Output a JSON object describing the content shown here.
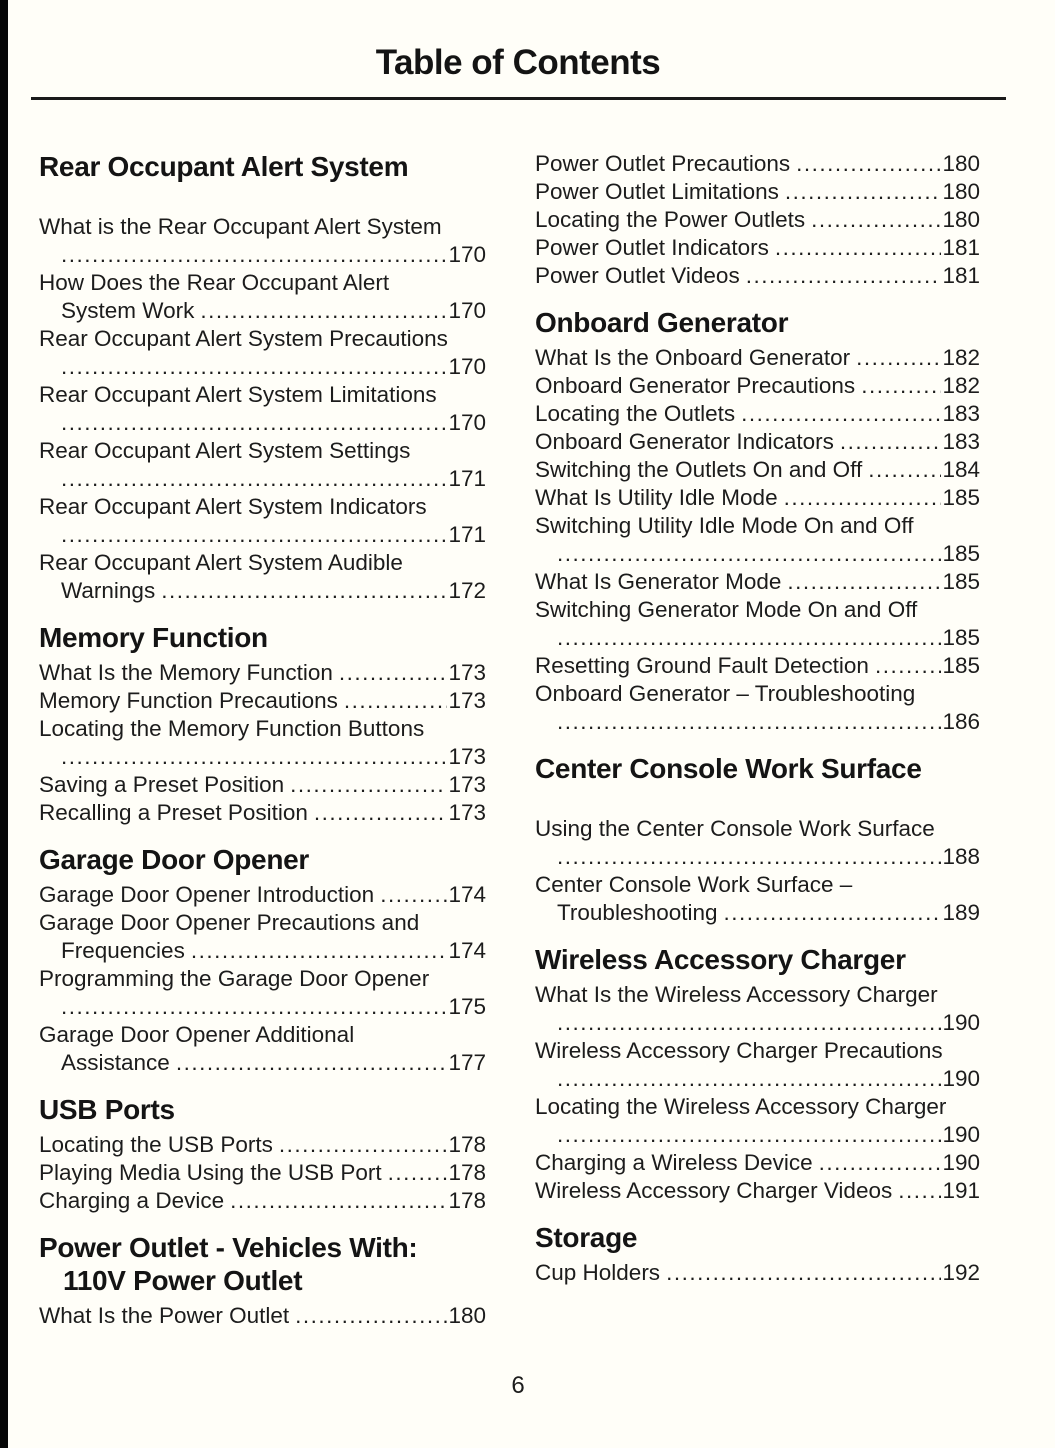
{
  "page": {
    "title": "Table of Contents",
    "number": "6"
  },
  "colors": {
    "background": "#fffef8",
    "text": "#1c1c1c",
    "heading_text": "#141414",
    "edge_bar": "#070707",
    "rule": "#1a1a1a"
  },
  "columns": [
    {
      "sections": [
        {
          "heading_lines": [
            "Rear Occupant Alert System"
          ],
          "space_after_heading": true,
          "entries": [
            {
              "t": "What is the Rear Occupant Alert System",
              "wrap": true,
              "t2": "",
              "p": "170"
            },
            {
              "t": "How Does the Rear Occupant Alert",
              "wrap": true,
              "t2": "System Work",
              "p": "170"
            },
            {
              "t": "Rear Occupant Alert System Precautions",
              "wrap": true,
              "t2": "",
              "p": "170"
            },
            {
              "t": "Rear Occupant Alert System Limitations",
              "wrap": true,
              "t2": "",
              "p": "170"
            },
            {
              "t": "Rear Occupant Alert System Settings",
              "wrap": true,
              "t2": "",
              "p": "171"
            },
            {
              "t": "Rear Occupant Alert System Indicators",
              "wrap": true,
              "t2": "",
              "p": "171"
            },
            {
              "t": "Rear Occupant Alert System Audible",
              "wrap": true,
              "t2": "Warnings",
              "p": "172"
            }
          ]
        },
        {
          "heading_lines": [
            "Memory Function"
          ],
          "entries": [
            {
              "t": "What Is the Memory Function",
              "p": "173"
            },
            {
              "t": "Memory Function Precautions",
              "p": "173"
            },
            {
              "t": "Locating the Memory Function Buttons",
              "wrap": true,
              "t2": "",
              "p": "173"
            },
            {
              "t": "Saving a Preset Position",
              "p": "173"
            },
            {
              "t": "Recalling a Preset Position",
              "p": "173"
            }
          ]
        },
        {
          "heading_lines": [
            "Garage Door Opener"
          ],
          "entries": [
            {
              "t": "Garage Door Opener Introduction",
              "p": "174"
            },
            {
              "t": "Garage Door Opener Precautions and",
              "wrap": true,
              "t2": "Frequencies",
              "p": "174"
            },
            {
              "t": "Programming the Garage Door Opener",
              "wrap": true,
              "t2": "",
              "p": "175"
            },
            {
              "t": "Garage Door Opener Additional",
              "wrap": true,
              "t2": "Assistance",
              "p": "177"
            }
          ]
        },
        {
          "heading_lines": [
            "USB Ports"
          ],
          "entries": [
            {
              "t": "Locating the USB Ports",
              "p": "178"
            },
            {
              "t": "Playing Media Using the USB Port",
              "p": "178"
            },
            {
              "t": "Charging a Device",
              "p": "178"
            }
          ]
        },
        {
          "heading_lines": [
            "Power Outlet - Vehicles With:",
            "110V Power Outlet"
          ],
          "entries": [
            {
              "t": "What Is the Power Outlet",
              "p": "180"
            }
          ]
        }
      ]
    },
    {
      "sections": [
        {
          "heading_lines": [],
          "entries": [
            {
              "t": "Power Outlet Precautions",
              "p": "180"
            },
            {
              "t": "Power Outlet Limitations",
              "p": "180"
            },
            {
              "t": "Locating the Power Outlets",
              "p": "180"
            },
            {
              "t": "Power Outlet Indicators",
              "p": "181"
            },
            {
              "t": "Power Outlet Videos",
              "p": "181"
            }
          ]
        },
        {
          "heading_lines": [
            "Onboard Generator"
          ],
          "entries": [
            {
              "t": "What Is the Onboard Generator",
              "p": "182"
            },
            {
              "t": "Onboard Generator Precautions",
              "p": "182"
            },
            {
              "t": "Locating the Outlets",
              "p": "183"
            },
            {
              "t": "Onboard Generator Indicators",
              "p": "183"
            },
            {
              "t": "Switching the Outlets On and Off",
              "p": "184"
            },
            {
              "t": "What Is Utility Idle Mode",
              "p": "185"
            },
            {
              "t": "Switching Utility Idle Mode On and Off",
              "wrap": true,
              "t2": "",
              "p": "185"
            },
            {
              "t": "What Is Generator Mode",
              "p": "185"
            },
            {
              "t": "Switching Generator Mode On and Off",
              "wrap": true,
              "t2": "",
              "p": "185"
            },
            {
              "t": "Resetting Ground Fault Detection",
              "p": "185"
            },
            {
              "t": "Onboard Generator – Troubleshooting",
              "wrap": true,
              "t2": "",
              "p": "186"
            }
          ]
        },
        {
          "heading_lines": [
            "Center Console Work Surface"
          ],
          "space_after_heading": true,
          "entries": [
            {
              "t": "Using the Center Console Work Surface",
              "wrap": true,
              "t2": "",
              "p": "188"
            },
            {
              "t": "Center Console Work Surface –",
              "wrap": true,
              "t2": "Troubleshooting",
              "p": "189"
            }
          ]
        },
        {
          "heading_lines": [
            "Wireless Accessory Charger"
          ],
          "entries": [
            {
              "t": "What Is the Wireless Accessory Charger",
              "wrap": true,
              "t2": "",
              "p": "190"
            },
            {
              "t": "Wireless Accessory Charger Precautions",
              "wrap": true,
              "t2": "",
              "p": "190"
            },
            {
              "t": "Locating the Wireless Accessory Charger",
              "wrap": true,
              "t2": "",
              "p": "190"
            },
            {
              "t": "Charging a Wireless Device",
              "p": "190"
            },
            {
              "t": "Wireless Accessory Charger Videos",
              "p": "191"
            }
          ]
        },
        {
          "heading_lines": [
            "Storage"
          ],
          "entries": [
            {
              "t": "Cup Holders",
              "p": "192"
            }
          ]
        }
      ]
    }
  ]
}
